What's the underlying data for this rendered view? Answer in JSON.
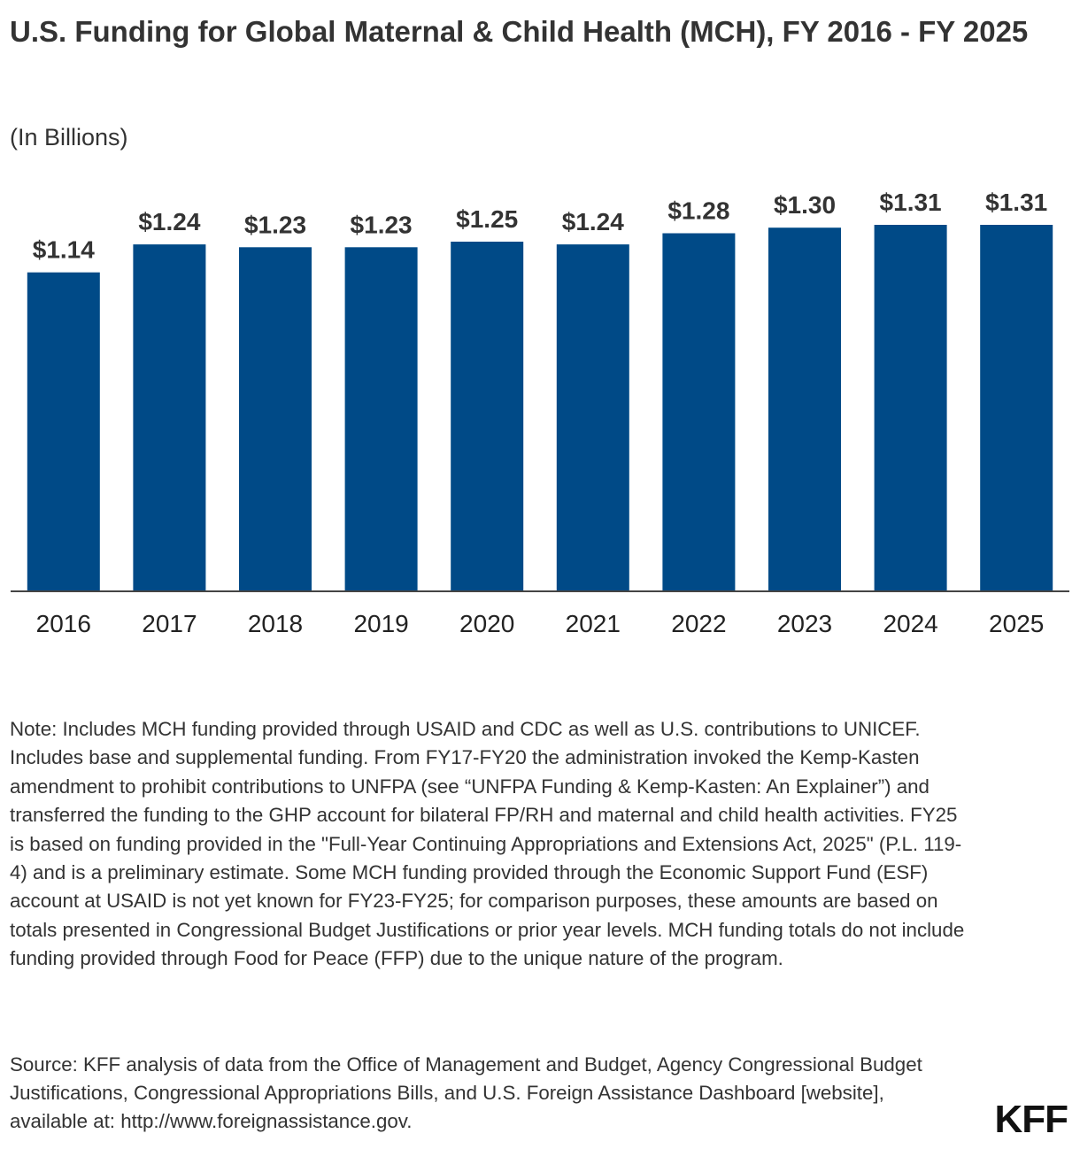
{
  "header": {
    "title": "U.S. Funding for Global Maternal & Child Health (MCH), FY 2016 - FY 2025",
    "subtitle": "(In Billions)"
  },
  "chart_data": {
    "type": "bar",
    "title": "U.S. Funding for Global Maternal & Child Health (MCH), FY 2016 - FY 2025",
    "ylabel": "(In Billions)",
    "xlabel": "",
    "categories": [
      "2016",
      "2017",
      "2018",
      "2019",
      "2020",
      "2021",
      "2022",
      "2023",
      "2024",
      "2025"
    ],
    "values": [
      1.14,
      1.24,
      1.23,
      1.23,
      1.25,
      1.24,
      1.28,
      1.3,
      1.31,
      1.31
    ],
    "data_labels": [
      "$1.14",
      "$1.24",
      "$1.23",
      "$1.23",
      "$1.25",
      "$1.24",
      "$1.28",
      "$1.30",
      "$1.31",
      "$1.31"
    ],
    "ylim": [
      0,
      1.31
    ],
    "grid": false,
    "bar_color": "#004a87"
  },
  "footer": {
    "note": "Note: Includes MCH funding provided through USAID and CDC as well as U.S. contributions to UNICEF. Includes base and supplemental funding. From FY17-FY20 the administration invoked the Kemp-Kasten amendment to prohibit contributions to UNFPA (see “UNFPA Funding & Kemp-Kasten: An Explainer”) and transferred the funding to the GHP account for bilateral FP/RH and maternal and child health activities. FY25 is based on funding provided in the \"Full-Year Continuing Appropriations and Extensions Act, 2025\" (P.L. 119-4) and is a preliminary estimate. Some MCH funding provided through the Economic Support Fund (ESF) account at USAID is not yet known for FY23-FY25; for comparison purposes, these amounts are based on totals presented in Congressional Budget Justifications or prior year levels. MCH funding totals do not include funding provided through Food for Peace (FFP) due to the unique nature of the program.",
    "source": "Source: KFF analysis of data from the Office of Management and Budget, Agency Congressional Budget Justifications, Congressional Appropriations Bills, and U.S. Foreign Assistance Dashboard [website], available at: http://www.foreignassistance.gov.",
    "logo": "KFF"
  }
}
